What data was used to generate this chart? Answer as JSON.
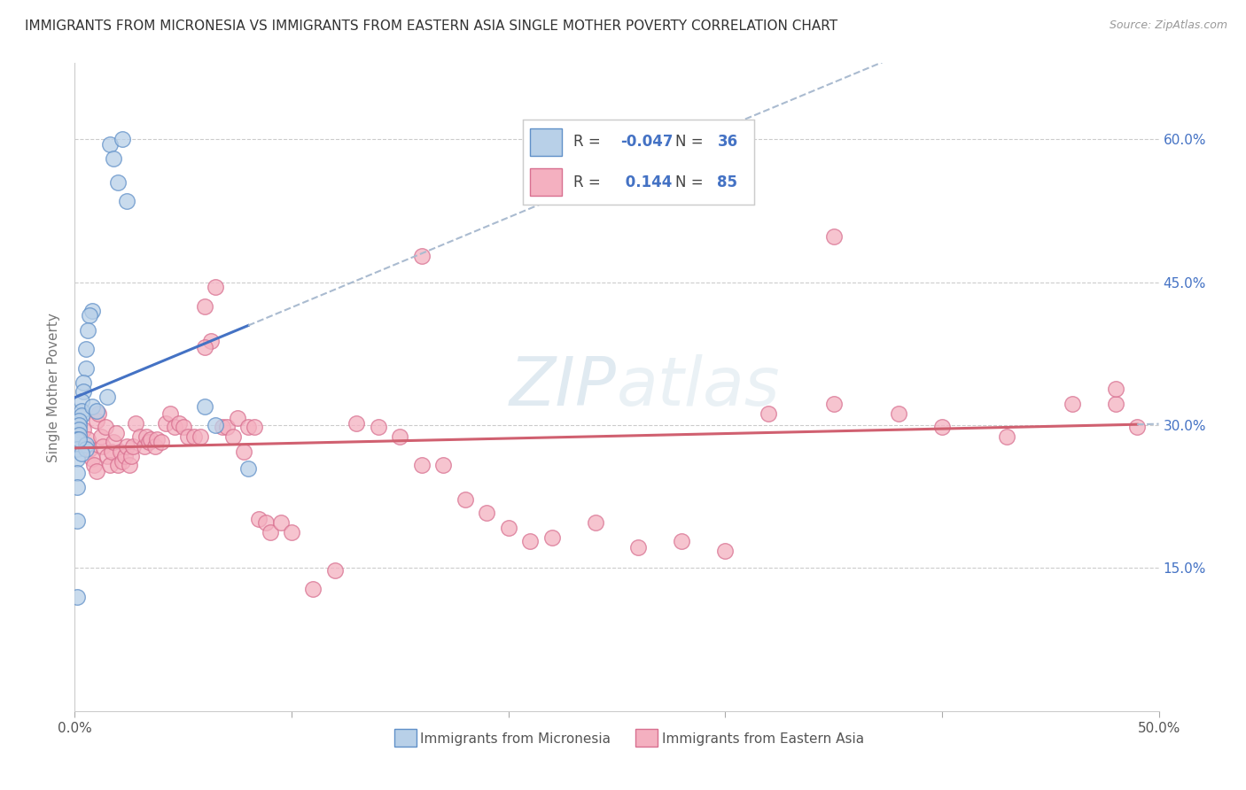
{
  "title": "IMMIGRANTS FROM MICRONESIA VS IMMIGRANTS FROM EASTERN ASIA SINGLE MOTHER POVERTY CORRELATION CHART",
  "source": "Source: ZipAtlas.com",
  "ylabel": "Single Mother Poverty",
  "ytick_values": [
    0.6,
    0.45,
    0.3,
    0.15
  ],
  "ytick_labels": [
    "60.0%",
    "45.0%",
    "30.0%",
    "15.0%"
  ],
  "xlim": [
    0.0,
    0.5
  ],
  "ylim": [
    0.0,
    0.68
  ],
  "color_micronesia_fill": "#b8d0e8",
  "color_micronesia_edge": "#6090c8",
  "color_eastern_asia_fill": "#f4b0c0",
  "color_eastern_asia_edge": "#d87090",
  "color_line_micronesia": "#4472C4",
  "color_line_eastern_asia": "#d06070",
  "color_dashed": "#aabbd0",
  "color_ytick": "#4472C4",
  "label_micronesia": "Immigrants from Micronesia",
  "label_eastern_asia": "Immigrants from Eastern Asia",
  "micronesia_x": [
    0.016,
    0.018,
    0.022,
    0.02,
    0.024,
    0.008,
    0.007,
    0.006,
    0.005,
    0.005,
    0.004,
    0.004,
    0.003,
    0.003,
    0.003,
    0.002,
    0.002,
    0.002,
    0.002,
    0.001,
    0.001,
    0.001,
    0.001,
    0.001,
    0.001,
    0.008,
    0.01,
    0.015,
    0.06,
    0.065,
    0.08,
    0.005,
    0.005,
    0.003,
    0.002,
    0.001
  ],
  "micronesia_y": [
    0.595,
    0.58,
    0.6,
    0.555,
    0.535,
    0.42,
    0.415,
    0.4,
    0.38,
    0.36,
    0.345,
    0.335,
    0.325,
    0.315,
    0.31,
    0.305,
    0.3,
    0.295,
    0.29,
    0.285,
    0.275,
    0.265,
    0.25,
    0.235,
    0.2,
    0.32,
    0.315,
    0.33,
    0.32,
    0.3,
    0.255,
    0.28,
    0.275,
    0.27,
    0.285,
    0.12
  ],
  "eastern_asia_x": [
    0.004,
    0.006,
    0.007,
    0.008,
    0.009,
    0.01,
    0.01,
    0.011,
    0.012,
    0.013,
    0.014,
    0.015,
    0.016,
    0.017,
    0.018,
    0.019,
    0.02,
    0.021,
    0.022,
    0.023,
    0.024,
    0.025,
    0.026,
    0.027,
    0.028,
    0.03,
    0.032,
    0.033,
    0.034,
    0.035,
    0.037,
    0.038,
    0.04,
    0.042,
    0.044,
    0.046,
    0.048,
    0.05,
    0.052,
    0.055,
    0.058,
    0.06,
    0.063,
    0.065,
    0.068,
    0.07,
    0.073,
    0.075,
    0.078,
    0.08,
    0.083,
    0.085,
    0.088,
    0.09,
    0.095,
    0.1,
    0.11,
    0.12,
    0.13,
    0.14,
    0.15,
    0.16,
    0.17,
    0.18,
    0.19,
    0.2,
    0.21,
    0.22,
    0.24,
    0.26,
    0.28,
    0.3,
    0.32,
    0.35,
    0.38,
    0.4,
    0.43,
    0.46,
    0.48,
    0.49,
    0.3,
    0.35,
    0.48,
    0.06,
    0.16
  ],
  "eastern_asia_y": [
    0.295,
    0.285,
    0.275,
    0.265,
    0.258,
    0.252,
    0.305,
    0.312,
    0.288,
    0.278,
    0.298,
    0.268,
    0.258,
    0.272,
    0.282,
    0.292,
    0.258,
    0.272,
    0.262,
    0.268,
    0.278,
    0.258,
    0.268,
    0.278,
    0.302,
    0.288,
    0.278,
    0.288,
    0.282,
    0.285,
    0.278,
    0.285,
    0.282,
    0.302,
    0.312,
    0.298,
    0.302,
    0.298,
    0.288,
    0.288,
    0.288,
    0.425,
    0.388,
    0.445,
    0.298,
    0.298,
    0.288,
    0.308,
    0.272,
    0.298,
    0.298,
    0.202,
    0.198,
    0.188,
    0.198,
    0.188,
    0.128,
    0.148,
    0.302,
    0.298,
    0.288,
    0.258,
    0.258,
    0.222,
    0.208,
    0.192,
    0.178,
    0.182,
    0.198,
    0.172,
    0.178,
    0.168,
    0.312,
    0.322,
    0.312,
    0.298,
    0.288,
    0.322,
    0.322,
    0.298,
    0.558,
    0.498,
    0.338,
    0.382,
    0.478
  ]
}
